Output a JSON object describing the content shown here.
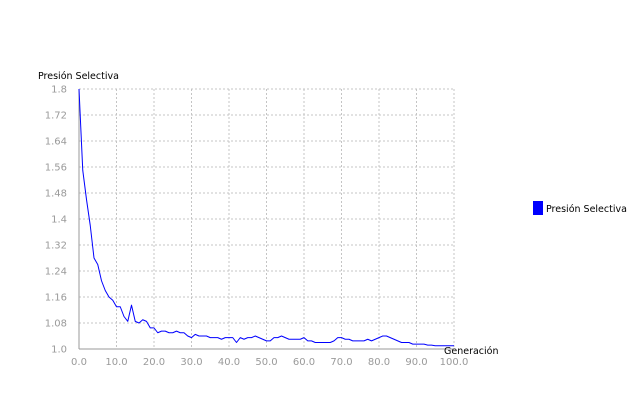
{
  "chart_data": {
    "type": "line",
    "title": "",
    "xlabel": "Generación",
    "ylabel": "Presión Selectiva",
    "xlim": [
      0,
      100
    ],
    "ylim": [
      1.0,
      1.8
    ],
    "x_ticks": [
      "0.0",
      "10.0",
      "20.0",
      "30.0",
      "40.0",
      "50.0",
      "60.0",
      "70.0",
      "80.0",
      "90.0",
      "100.0"
    ],
    "y_ticks": [
      "1.0",
      "1.08",
      "1.16",
      "1.24",
      "1.32",
      "1.4",
      "1.48",
      "1.56",
      "1.64",
      "1.72",
      "1.8"
    ],
    "grid": true,
    "legend_position": "right",
    "series": [
      {
        "name": "Presión Selectiva",
        "color": "#0000ff",
        "x": [
          0,
          1,
          2,
          3,
          4,
          5,
          6,
          7,
          8,
          9,
          10,
          11,
          12,
          13,
          14,
          15,
          16,
          17,
          18,
          19,
          20,
          21,
          22,
          23,
          24,
          25,
          26,
          27,
          28,
          29,
          30,
          31,
          32,
          33,
          34,
          35,
          36,
          37,
          38,
          39,
          40,
          41,
          42,
          43,
          44,
          45,
          46,
          47,
          48,
          49,
          50,
          51,
          52,
          53,
          54,
          55,
          56,
          57,
          58,
          59,
          60,
          61,
          62,
          63,
          64,
          65,
          66,
          67,
          68,
          69,
          70,
          71,
          72,
          73,
          74,
          75,
          76,
          77,
          78,
          79,
          80,
          81,
          82,
          83,
          84,
          85,
          86,
          87,
          88,
          89,
          90,
          91,
          92,
          93,
          94,
          95,
          96,
          97,
          98,
          99,
          100
        ],
        "y": [
          1.8,
          1.55,
          1.46,
          1.38,
          1.28,
          1.26,
          1.21,
          1.18,
          1.16,
          1.15,
          1.13,
          1.13,
          1.1,
          1.085,
          1.135,
          1.085,
          1.08,
          1.09,
          1.085,
          1.065,
          1.065,
          1.05,
          1.055,
          1.055,
          1.05,
          1.05,
          1.055,
          1.05,
          1.05,
          1.04,
          1.035,
          1.045,
          1.04,
          1.04,
          1.04,
          1.035,
          1.035,
          1.035,
          1.03,
          1.035,
          1.035,
          1.035,
          1.02,
          1.035,
          1.03,
          1.035,
          1.035,
          1.04,
          1.035,
          1.03,
          1.025,
          1.025,
          1.035,
          1.035,
          1.04,
          1.035,
          1.03,
          1.03,
          1.03,
          1.03,
          1.035,
          1.025,
          1.025,
          1.02,
          1.02,
          1.02,
          1.02,
          1.02,
          1.025,
          1.035,
          1.035,
          1.03,
          1.03,
          1.025,
          1.025,
          1.025,
          1.025,
          1.03,
          1.025,
          1.03,
          1.035,
          1.04,
          1.04,
          1.035,
          1.03,
          1.025,
          1.02,
          1.02,
          1.02,
          1.015,
          1.015,
          1.015,
          1.015,
          1.012,
          1.012,
          1.01,
          1.01,
          1.01,
          1.01,
          1.01,
          1.01
        ]
      }
    ]
  }
}
